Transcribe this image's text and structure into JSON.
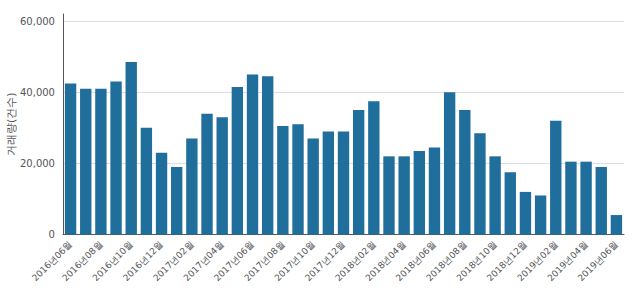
{
  "chart_data": {
    "type": "bar",
    "ylabel": "거래량(건수)",
    "categories": [
      "2016년06월",
      null,
      "2016년08월",
      null,
      "2016년10월",
      null,
      "2016년12월",
      null,
      "2017년02월",
      null,
      "2017년04월",
      null,
      "2017년06월",
      null,
      "2017년08월",
      null,
      "2017년10월",
      null,
      "2017년12월",
      null,
      "2018년02월",
      null,
      "2018년04월",
      null,
      "2018년06월",
      null,
      "2018년08월",
      null,
      "2018년10월",
      null,
      "2018년12월",
      null,
      "2019년02월",
      null,
      "2019년04월",
      null,
      "2019년06월"
    ],
    "values": [
      42500,
      41000,
      41000,
      43000,
      48500,
      30000,
      23000,
      19000,
      27000,
      34000,
      33000,
      41500,
      45000,
      44500,
      30500,
      31000,
      27000,
      29000,
      29000,
      35000,
      37500,
      22000,
      22000,
      23500,
      24500,
      40000,
      35000,
      28500,
      22000,
      17500,
      12000,
      11000,
      32000,
      20500,
      20500,
      19000,
      5500
    ],
    "color": "#1f6e9c",
    "ylim": [
      0,
      62000
    ],
    "yticks": [
      0,
      {
        "value": 20000,
        "label": "20,000"
      },
      {
        "value": 40000,
        "label": "40,000"
      },
      {
        "value": 60000,
        "label": "60,000"
      }
    ],
    "grid": true
  }
}
